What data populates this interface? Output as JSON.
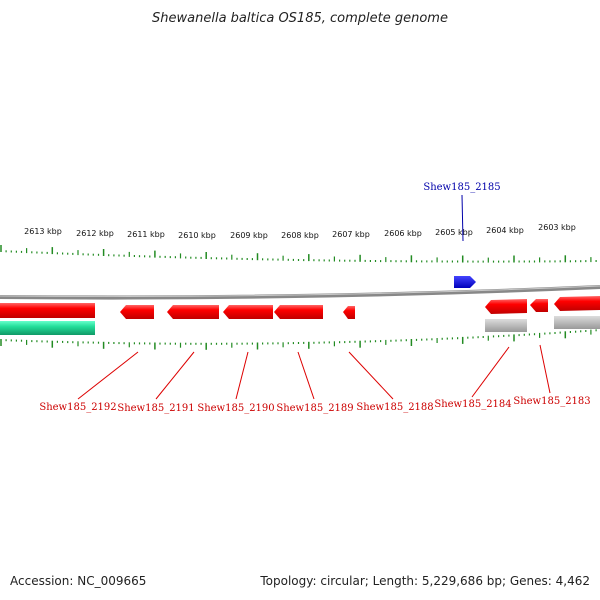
{
  "title": "Shewanella baltica OS185, complete genome",
  "footer": {
    "accession": "Accession: NC_009665",
    "summary": "Topology: circular; Length: 5,229,686 bp; Genes: 4,462"
  },
  "ruler_labels": [
    "2613 kbp",
    "2612 kbp",
    "2611 kbp",
    "2610 kbp",
    "2609 kbp",
    "2608 kbp",
    "2607 kbp",
    "2606 kbp",
    "2605 kbp",
    "2604 kbp",
    "2603 kbp"
  ],
  "gene_labels": {
    "shew2192": "Shew185_2192",
    "shew2191": "Shew185_2191",
    "shew2190": "Shew185_2190",
    "shew2189": "Shew185_2189",
    "shew2188": "Shew185_2188",
    "shew2184": "Shew185_2184",
    "shew2183": "Shew185_2183",
    "shew2185": "Shew185_2185"
  },
  "colors": {
    "forward_gene": "#0000ee",
    "reverse_gene": "#ee0000",
    "rna_or_other": "#22dd99",
    "pseudo": "#bbbbbb",
    "backbone": "#888888",
    "ticks": "#228b22"
  }
}
